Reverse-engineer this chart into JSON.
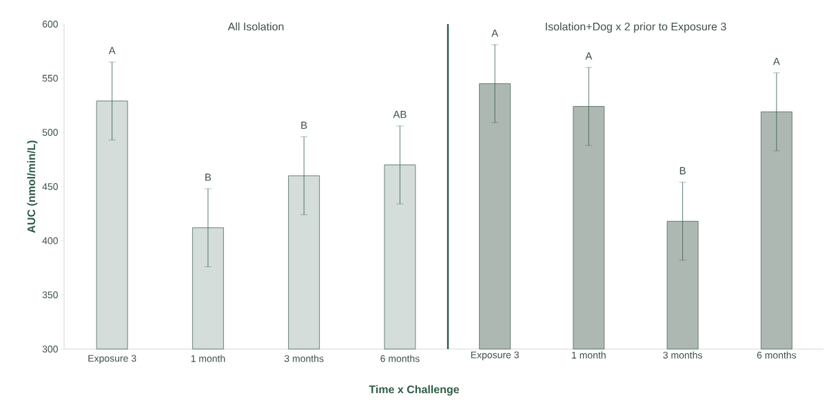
{
  "chart_data": [
    {
      "type": "bar",
      "title": "All Isolation",
      "ylabel": "AUC (nmol/min/L)",
      "xlabel": "Time x Challenge",
      "categories": [
        "Exposure 3",
        "1 month",
        "3 months",
        "6 months"
      ],
      "values": [
        529,
        412,
        460,
        470
      ],
      "errors": [
        36,
        36,
        36,
        36
      ],
      "colors": [
        "#d4ddd9",
        "#d4ddd9",
        "#d4ddd9",
        "#d4ddd9"
      ],
      "ylim": [
        300,
        600
      ],
      "yticks": [
        300,
        350,
        400,
        450,
        500,
        550,
        600
      ],
      "annotations": [
        "A",
        "B",
        "B",
        "AB"
      ]
    },
    {
      "type": "bar",
      "title": "Isolation+Dog x 2 prior to Exposure 3",
      "categories": [
        "Exposure 3",
        "1 month",
        "3 months",
        "6 months"
      ],
      "values": [
        545,
        524,
        418,
        519
      ],
      "errors": [
        36,
        36,
        36,
        36
      ],
      "colors": [
        "#aeb8b3",
        "#aeb8b3",
        "#aeb8b3",
        "#aeb8b3"
      ],
      "ylim": [
        300,
        600
      ],
      "yticks": [
        300,
        350,
        400,
        450,
        500,
        550,
        600
      ],
      "tick_labels": "x",
      "annotations": [
        "A",
        "A",
        "B",
        "A"
      ]
    }
  ]
}
